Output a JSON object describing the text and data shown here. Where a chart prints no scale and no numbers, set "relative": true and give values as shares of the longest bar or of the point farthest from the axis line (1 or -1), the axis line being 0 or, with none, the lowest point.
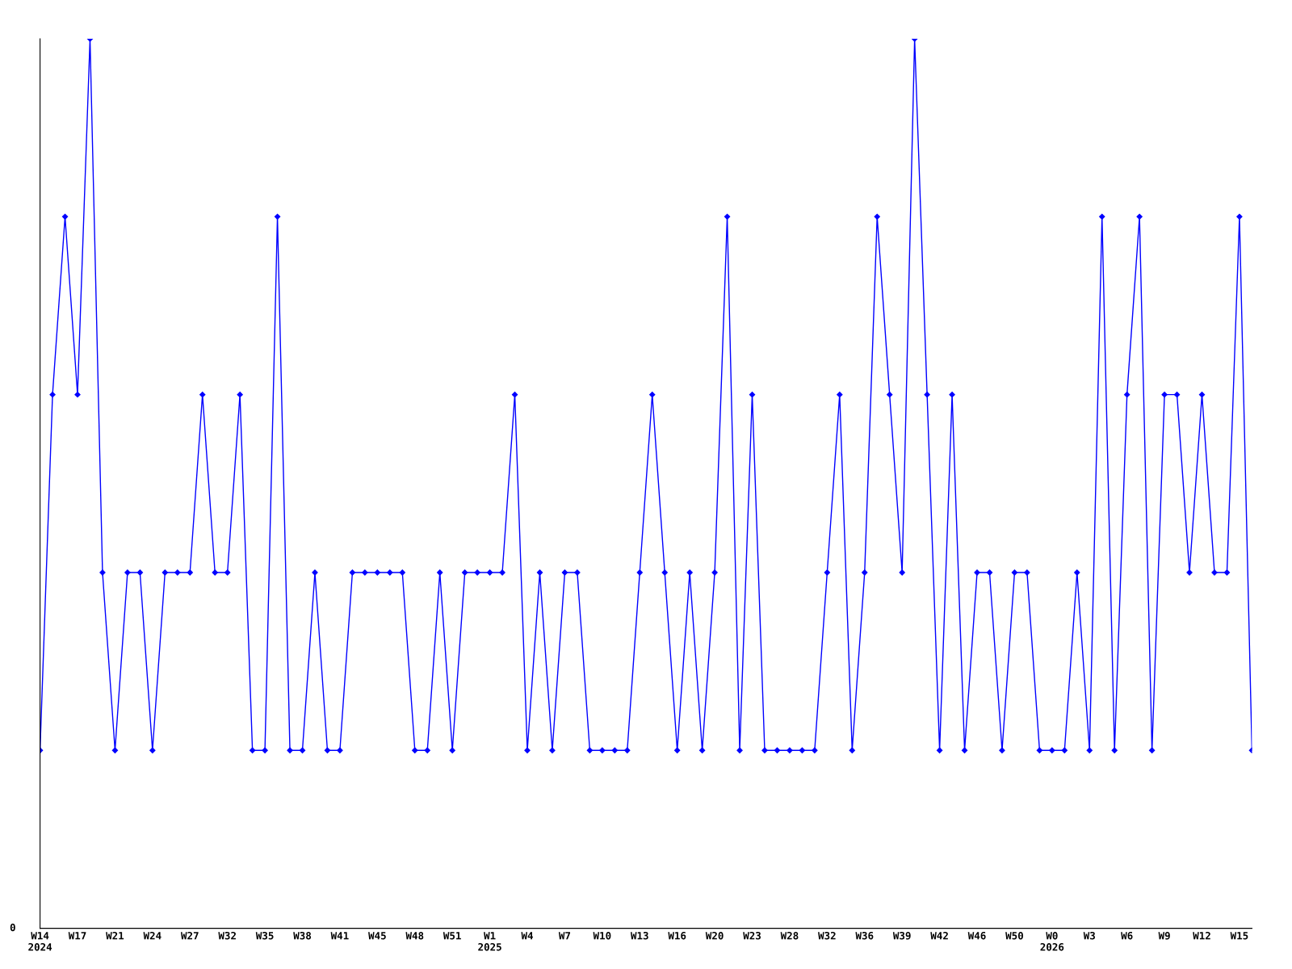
{
  "chart_data": {
    "type": "line",
    "relative": true,
    "marker": "diamond",
    "line_style": "solid",
    "grid": false,
    "annotations": [
      "0"
    ],
    "categories": [
      "W14\n2024",
      null,
      null,
      "W17",
      null,
      null,
      "W21",
      null,
      null,
      "W24",
      null,
      null,
      "W27",
      null,
      null,
      "W32",
      null,
      null,
      "W35",
      null,
      null,
      "W38",
      null,
      null,
      "W41",
      null,
      null,
      "W45",
      null,
      null,
      "W48",
      null,
      null,
      "W51",
      null,
      null,
      "W1\n2025",
      null,
      null,
      "W4",
      null,
      null,
      "W7",
      null,
      null,
      "W10",
      null,
      null,
      "W13",
      null,
      null,
      "W16",
      null,
      null,
      "W20",
      null,
      null,
      "W23",
      null,
      null,
      "W28",
      null,
      null,
      "W32",
      null,
      null,
      "W36",
      null,
      null,
      "W39",
      null,
      null,
      "W42",
      null,
      null,
      "W46",
      null,
      null,
      "W50",
      null,
      null,
      "W0\n2026",
      null,
      null,
      "W3",
      null,
      null,
      "W6",
      null,
      null,
      "W9",
      null,
      null,
      "W12",
      null,
      null,
      "W15",
      null
    ],
    "series": [
      {
        "color": "#0000ff",
        "values": [
          0.2,
          0.6,
          0.8,
          0.6,
          1,
          0.4,
          0.2,
          0.4,
          0.4,
          0.2,
          0.4,
          0.4,
          0.4,
          0.6,
          0.4,
          0.4,
          0.6,
          0.2,
          0.2,
          0.8,
          0.2,
          0.2,
          0.4,
          0.2,
          0.2,
          0.4,
          0.4,
          0.4,
          0.4,
          0.4,
          0.2,
          0.2,
          0.4,
          0.2,
          0.4,
          0.4,
          0.4,
          0.4,
          0.6,
          0.2,
          0.4,
          0.2,
          0.4,
          0.4,
          0.2,
          0.2,
          0.2,
          0.2,
          0.4,
          0.6,
          0.4,
          0.2,
          0.4,
          0.2,
          0.4,
          0.8,
          0.2,
          0.6,
          0.2,
          0.2,
          0.2,
          0.2,
          0.2,
          0.4,
          0.6,
          0.2,
          0.4,
          0.8,
          0.6,
          0.4,
          1,
          0.6,
          0.2,
          0.6,
          0.2,
          0.4,
          0.4,
          0.2,
          0.4,
          0.4,
          0.2,
          0.2,
          0.2,
          0.4,
          0.2,
          0.8,
          0.2,
          0.6,
          0.8,
          0.2,
          0.6,
          0.6,
          0.4,
          0.6,
          0.4,
          0.4,
          0.8,
          0.2
        ]
      }
    ]
  }
}
